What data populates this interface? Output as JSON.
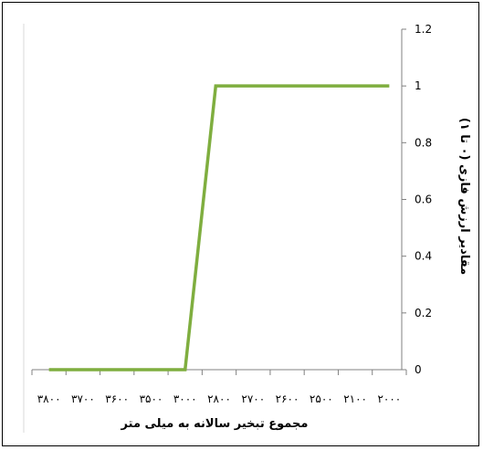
{
  "chart_data": {
    "type": "line",
    "title": "",
    "xlabel": "مجموع تبخیر سالانه به میلی متر",
    "ylabel": "مقادیر ارزش فازی (۰ تا ۱)",
    "x_tick_labels": [
      "۳۸۰۰",
      "۳۷۰۰",
      "۳۶۰۰",
      "۳۵۰۰",
      "۳۰۰۰",
      "۲۸۰۰",
      "۲۷۰۰",
      "۲۶۰۰",
      "۲۵۰۰",
      "۲۱۰۰",
      "۲۰۰۰"
    ],
    "x_axis_direction": "reversed (values decrease from left to right)",
    "y_ticks": [
      "0",
      "0.2",
      "0.4",
      "0.6",
      "0.8",
      "1",
      "1.2"
    ],
    "ylim": [
      0,
      1.2
    ],
    "y_axis_position": "right",
    "grid": false,
    "legend": "none",
    "series": [
      {
        "color": "#7fae3f",
        "points": [
          {
            "x_index": 0.5,
            "y": 0
          },
          {
            "x_index": 4.5,
            "y": 0
          },
          {
            "x_index": 5.4,
            "y": 1
          },
          {
            "x_index": 10.5,
            "y": 1
          }
        ]
      }
    ]
  }
}
